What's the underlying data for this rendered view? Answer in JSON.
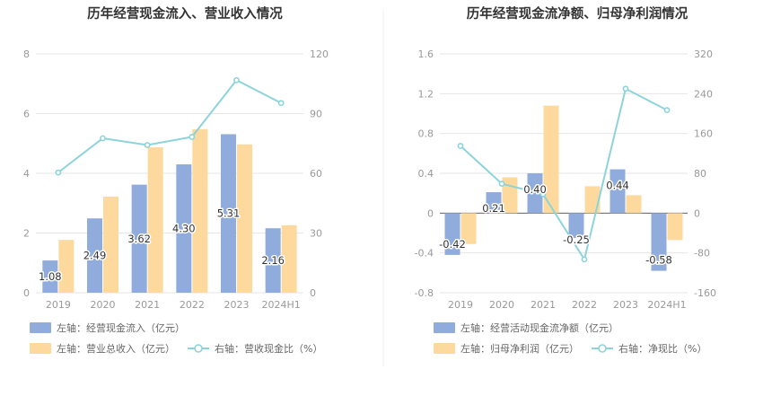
{
  "colors": {
    "bar_blue": "#8facdc",
    "bar_orange": "#fdd99e",
    "line_teal": "#8dd3dc",
    "grid": "#e6e6e6",
    "axis_text": "#999999",
    "title": "#333333",
    "divider": "#eeeeee"
  },
  "chart_data": [
    {
      "type": "bar",
      "title": "历年经营现金流入、营业收入情况",
      "categories": [
        "2019",
        "2020",
        "2021",
        "2022",
        "2023",
        "2024H1"
      ],
      "left_axis": {
        "ticks": [
          "0",
          "2",
          "4",
          "6",
          "8"
        ],
        "ylim": [
          0,
          8
        ]
      },
      "right_axis": {
        "ticks": [
          "0",
          "30",
          "60",
          "90",
          "120"
        ],
        "ylim": [
          0,
          120
        ]
      },
      "series": [
        {
          "name": "左轴：经营现金流入（亿元）",
          "kind": "bar",
          "axis": "left",
          "color": "#8facdc",
          "values": [
            1.08,
            2.49,
            3.62,
            4.3,
            5.31,
            2.16
          ],
          "labels": [
            "1.08",
            "2.49",
            "3.62",
            "4.30",
            "5.31",
            "2.16"
          ]
        },
        {
          "name": "左轴：营业总收入（亿元）",
          "kind": "bar",
          "axis": "left",
          "color": "#fdd99e",
          "values": [
            1.77,
            3.22,
            4.87,
            5.48,
            4.97,
            2.26
          ]
        },
        {
          "name": "右轴：营收现金比（%）",
          "kind": "line",
          "axis": "right",
          "color": "#8dd3dc",
          "values": [
            60.4,
            77.6,
            74.2,
            78.3,
            106.8,
            95.3
          ]
        }
      ],
      "legend_position": "bottom-left",
      "grid": true
    },
    {
      "type": "bar",
      "title": "历年经营现金流净额、归母净利润情况",
      "categories": [
        "2019",
        "2020",
        "2021",
        "2022",
        "2023",
        "2024H1"
      ],
      "left_axis": {
        "ticks": [
          "-0.8",
          "-0.4",
          "0",
          "0.4",
          "0.8",
          "1.2",
          "1.6"
        ],
        "ylim": [
          -0.8,
          1.6
        ]
      },
      "right_axis": {
        "ticks": [
          "-160",
          "-80",
          "0",
          "80",
          "160",
          "240",
          "320"
        ],
        "ylim": [
          -160,
          320
        ]
      },
      "series": [
        {
          "name": "左轴：经营活动现金流净额（亿元）",
          "kind": "bar",
          "axis": "left",
          "color": "#8facdc",
          "values": [
            -0.42,
            0.21,
            0.4,
            -0.25,
            0.44,
            -0.58
          ],
          "labels": [
            "-0.42",
            "0.21",
            "0.40",
            "-0.25",
            "0.44",
            "-0.58"
          ]
        },
        {
          "name": "左轴：归母净利润（亿元）",
          "kind": "bar",
          "axis": "left",
          "color": "#fdd99e",
          "values": [
            -0.31,
            0.36,
            1.08,
            0.27,
            0.18,
            -0.27
          ]
        },
        {
          "name": "右轴：净现比（%）",
          "kind": "line",
          "axis": "right",
          "color": "#8dd3dc",
          "values": [
            135,
            59,
            38,
            -93,
            250,
            207
          ]
        }
      ],
      "legend_position": "bottom-left",
      "grid": true
    }
  ]
}
